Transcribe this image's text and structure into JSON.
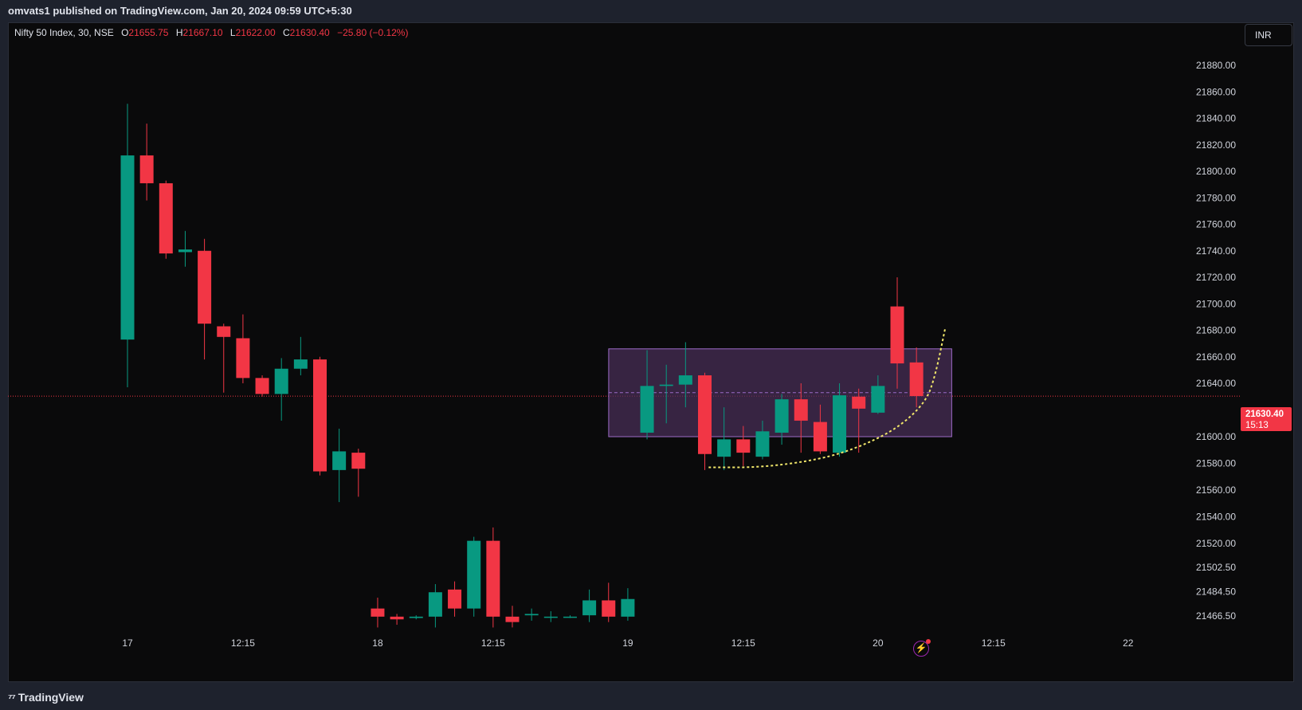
{
  "header": {
    "published": "omvats1 published on TradingView.com, Jan 20, 2024 09:59 UTC+5:30"
  },
  "legend": {
    "symbol": "Nifty 50 Index, 30, NSE",
    "o_label": "O",
    "o_value": "21655.75",
    "h_label": "H",
    "h_value": "21667.10",
    "l_label": "L",
    "l_value": "21622.00",
    "c_label": "C",
    "c_value": "21630.40",
    "change": "−25.80 (−0.12%)"
  },
  "currency_button": "INR",
  "price_tag": {
    "price": "21630.40",
    "countdown": "15:13"
  },
  "footer": {
    "brand": "TradingView",
    "logo_icon": "tradingview-logo-icon"
  },
  "colors": {
    "up": "#089981",
    "down": "#f23645",
    "box_fill": "#4a2f5a",
    "box_stroke": "#9c6bc7",
    "curve": "#f0e66a",
    "background": "#0a0a0b"
  },
  "chart_data": {
    "type": "candlestick",
    "y_ticks": [
      "21880.00",
      "21860.00",
      "21840.00",
      "21820.00",
      "21800.00",
      "21780.00",
      "21760.00",
      "21740.00",
      "21720.00",
      "21700.00",
      "21680.00",
      "21660.00",
      "21640.00",
      "21600.00",
      "21580.00",
      "21560.00",
      "21540.00",
      "21520.00",
      "21502.50",
      "21484.50",
      "21466.50"
    ],
    "y_tick_values": [
      21880,
      21860,
      21840,
      21820,
      21800,
      21780,
      21760,
      21740,
      21720,
      21700,
      21680,
      21660,
      21640,
      21600,
      21580,
      21560,
      21540,
      21520,
      21502.5,
      21484.5,
      21466.5
    ],
    "x_ticks": [
      {
        "label": "17",
        "index": 0
      },
      {
        "label": "12:15",
        "index": 6
      },
      {
        "label": "18",
        "index": 13
      },
      {
        "label": "12:15",
        "index": 19
      },
      {
        "label": "19",
        "index": 26
      },
      {
        "label": "12:15",
        "index": 32
      },
      {
        "label": "20",
        "index": 39
      },
      {
        "label": "12:15",
        "index": 45
      },
      {
        "label": "22",
        "index": 52
      }
    ],
    "last_price": 21630.4,
    "candles": [
      {
        "i": 0,
        "o": 21673,
        "h": 21851,
        "l": 21637,
        "c": 21812
      },
      {
        "i": 1,
        "o": 21812,
        "h": 21836,
        "l": 21778,
        "c": 21791
      },
      {
        "i": 2,
        "o": 21791,
        "h": 21793,
        "l": 21734,
        "c": 21738
      },
      {
        "i": 3,
        "o": 21739,
        "h": 21755,
        "l": 21728,
        "c": 21741
      },
      {
        "i": 4,
        "o": 21740,
        "h": 21749,
        "l": 21658,
        "c": 21685
      },
      {
        "i": 5,
        "o": 21683,
        "h": 21685,
        "l": 21633,
        "c": 21675
      },
      {
        "i": 6,
        "o": 21674,
        "h": 21692,
        "l": 21640,
        "c": 21644
      },
      {
        "i": 7,
        "o": 21644,
        "h": 21646,
        "l": 21630,
        "c": 21632
      },
      {
        "i": 8,
        "o": 21632,
        "h": 21659,
        "l": 21612,
        "c": 21651
      },
      {
        "i": 9,
        "o": 21651,
        "h": 21675,
        "l": 21646,
        "c": 21658
      },
      {
        "i": 10,
        "o": 21658,
        "h": 21660,
        "l": 21571,
        "c": 21574
      },
      {
        "i": 11,
        "o": 21575,
        "h": 21606,
        "l": 21551,
        "c": 21589
      },
      {
        "i": 12,
        "o": 21588,
        "h": 21591,
        "l": 21555,
        "c": 21576
      },
      {
        "i": 13,
        "o": 21472,
        "h": 21480,
        "l": 21458,
        "c": 21466
      },
      {
        "i": 14,
        "o": 21466,
        "h": 21468,
        "l": 21460,
        "c": 21464
      },
      {
        "i": 15,
        "o": 21465,
        "h": 21467,
        "l": 21464,
        "c": 21466
      },
      {
        "i": 16,
        "o": 21466,
        "h": 21490,
        "l": 21458,
        "c": 21484
      },
      {
        "i": 17,
        "o": 21486,
        "h": 21492,
        "l": 21466,
        "c": 21472
      },
      {
        "i": 18,
        "o": 21472,
        "h": 21525,
        "l": 21466,
        "c": 21522
      },
      {
        "i": 19,
        "o": 21522,
        "h": 21532,
        "l": 21458,
        "c": 21466
      },
      {
        "i": 20,
        "o": 21466,
        "h": 21474,
        "l": 21458,
        "c": 21462
      },
      {
        "i": 21,
        "o": 21467,
        "h": 21472,
        "l": 21463,
        "c": 21468
      },
      {
        "i": 22,
        "o": 21466,
        "h": 21470,
        "l": 21462,
        "c": 21466
      },
      {
        "i": 23,
        "o": 21466,
        "h": 21467,
        "l": 21465,
        "c": 21466
      },
      {
        "i": 24,
        "o": 21467,
        "h": 21486,
        "l": 21462,
        "c": 21478
      },
      {
        "i": 25,
        "o": 21478,
        "h": 21491,
        "l": 21462,
        "c": 21466
      },
      {
        "i": 26,
        "o": 21466,
        "h": 21487,
        "l": 21463,
        "c": 21479
      },
      {
        "i": 27,
        "o": 21603,
        "h": 21665,
        "l": 21598,
        "c": 21638
      },
      {
        "i": 28,
        "o": 21638,
        "h": 21654,
        "l": 21610,
        "c": 21639
      },
      {
        "i": 29,
        "o": 21639,
        "h": 21671,
        "l": 21622,
        "c": 21646
      },
      {
        "i": 30,
        "o": 21646,
        "h": 21648,
        "l": 21575,
        "c": 21587
      },
      {
        "i": 31,
        "o": 21585,
        "h": 21622,
        "l": 21575,
        "c": 21598
      },
      {
        "i": 32,
        "o": 21598,
        "h": 21608,
        "l": 21578,
        "c": 21588
      },
      {
        "i": 33,
        "o": 21585,
        "h": 21612,
        "l": 21583,
        "c": 21604
      },
      {
        "i": 34,
        "o": 21603,
        "h": 21632,
        "l": 21594,
        "c": 21628
      },
      {
        "i": 35,
        "o": 21628,
        "h": 21640,
        "l": 21588,
        "c": 21612
      },
      {
        "i": 36,
        "o": 21611,
        "h": 21624,
        "l": 21587,
        "c": 21589
      },
      {
        "i": 37,
        "o": 21588,
        "h": 21640,
        "l": 21585,
        "c": 21631
      },
      {
        "i": 38,
        "o": 21630,
        "h": 21636,
        "l": 21588,
        "c": 21621
      },
      {
        "i": 39,
        "o": 21618,
        "h": 21646,
        "l": 21617,
        "c": 21638
      },
      {
        "i": 40,
        "o": 21698,
        "h": 21720,
        "l": 21636,
        "c": 21655
      },
      {
        "i": 41,
        "o": 21655.75,
        "h": 21667.1,
        "l": 21622,
        "c": 21630.4
      }
    ],
    "drawings": {
      "rectangle": {
        "i_start": 26,
        "i_end": 42.5,
        "top": 21666,
        "bottom": 21600
      },
      "rectangle_midline": 21633,
      "curve": [
        [
          30.2,
          21577
        ],
        [
          33,
          21577
        ],
        [
          36,
          21583
        ],
        [
          38,
          21592
        ],
        [
          40,
          21606
        ],
        [
          41.5,
          21626
        ],
        [
          42,
          21647
        ],
        [
          42.5,
          21682
        ]
      ]
    }
  }
}
